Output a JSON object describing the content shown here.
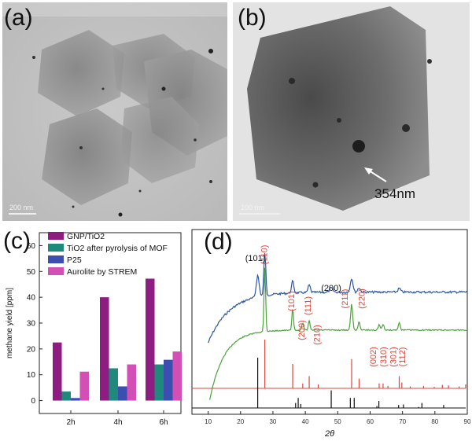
{
  "figure": {
    "panel_a": {
      "label": "(a)",
      "scale_bar": "200 nm"
    },
    "panel_b": {
      "label": "(b)",
      "scale_bar": "100 nm",
      "annotation": "354nm"
    },
    "panel_c": {
      "label": "(c)"
    },
    "panel_d": {
      "label": "(d)"
    }
  },
  "chart_data": [
    {
      "type": "bar",
      "categories": [
        "2h",
        "4h",
        "6h"
      ],
      "ylabel": "methane yield [ppm]",
      "xlabel": "",
      "ylim": [
        -5,
        65
      ],
      "yticks": [
        0,
        10,
        20,
        30,
        40,
        50,
        60
      ],
      "legend_position": "top",
      "series": [
        {
          "name": "GNP/TiO2",
          "color": "#8e1d82",
          "values": [
            22.5,
            40.0,
            47.2
          ]
        },
        {
          "name": "TiO2 after pyrolysis of MOF",
          "color": "#1f8a7c",
          "values": [
            3.5,
            12.5,
            14.0
          ]
        },
        {
          "name": "P25",
          "color": "#3c4fb0",
          "values": [
            1.0,
            5.5,
            15.8
          ]
        },
        {
          "name": "Aurolite by STREM",
          "color": "#d24fb5",
          "values": [
            11.2,
            14.0,
            19.0
          ]
        }
      ]
    },
    {
      "type": "line",
      "xlabel": "2θ",
      "xlim": [
        5,
        90
      ],
      "xticks": [
        10,
        20,
        30,
        40,
        50,
        60,
        70,
        80,
        90
      ],
      "series_colors": [
        "#2a56a8",
        "#4aa338",
        "#d9473c",
        "#111111"
      ],
      "peak_labels": [
        {
          "text": "(101)",
          "color": "#111111",
          "x": 25.3
        },
        {
          "text": "(110)",
          "color": "#d9473c",
          "x": 27.5
        },
        {
          "text": "(101)",
          "color": "#d9473c",
          "x": 36.1
        },
        {
          "text": "(200)",
          "color": "#d9473c",
          "x": 39.2
        },
        {
          "text": "(111)",
          "color": "#d9473c",
          "x": 41.2
        },
        {
          "text": "(210)",
          "color": "#d9473c",
          "x": 44.0
        },
        {
          "text": "(200)",
          "color": "#111111",
          "x": 48.0
        },
        {
          "text": "(211)",
          "color": "#d9473c",
          "x": 54.3
        },
        {
          "text": "(220)",
          "color": "#d9473c",
          "x": 56.6
        },
        {
          "text": "(002)",
          "color": "#d9473c",
          "x": 62.8
        },
        {
          "text": "(310)",
          "color": "#d9473c",
          "x": 64.0
        },
        {
          "text": "(301)",
          "color": "#d9473c",
          "x": 69.0
        },
        {
          "text": "(112)",
          "color": "#d9473c",
          "x": 69.8
        }
      ],
      "rutile_ref_peaks": [
        27.5,
        36.1,
        39.2,
        41.2,
        44.0,
        54.3,
        56.6,
        62.8,
        64.0,
        65.5,
        69.0,
        69.8,
        72.4,
        76.5,
        79.8,
        82.3,
        84.2,
        87.5,
        89.5
      ],
      "rutile_ref_heights": [
        1.0,
        0.5,
        0.1,
        0.25,
        0.08,
        0.6,
        0.2,
        0.1,
        0.1,
        0.05,
        0.25,
        0.12,
        0.04,
        0.05,
        0.03,
        0.07,
        0.06,
        0.04,
        0.08
      ],
      "anatase_ref_peaks": [
        25.3,
        37.0,
        37.8,
        38.6,
        48.0,
        53.9,
        55.1,
        62.1,
        62.7,
        68.8,
        70.3,
        75.0,
        76.0,
        82.7
      ],
      "anatase_ref_heights": [
        1.0,
        0.1,
        0.2,
        0.08,
        0.35,
        0.2,
        0.2,
        0.04,
        0.14,
        0.06,
        0.07,
        0.02,
        0.1,
        0.06
      ]
    }
  ]
}
